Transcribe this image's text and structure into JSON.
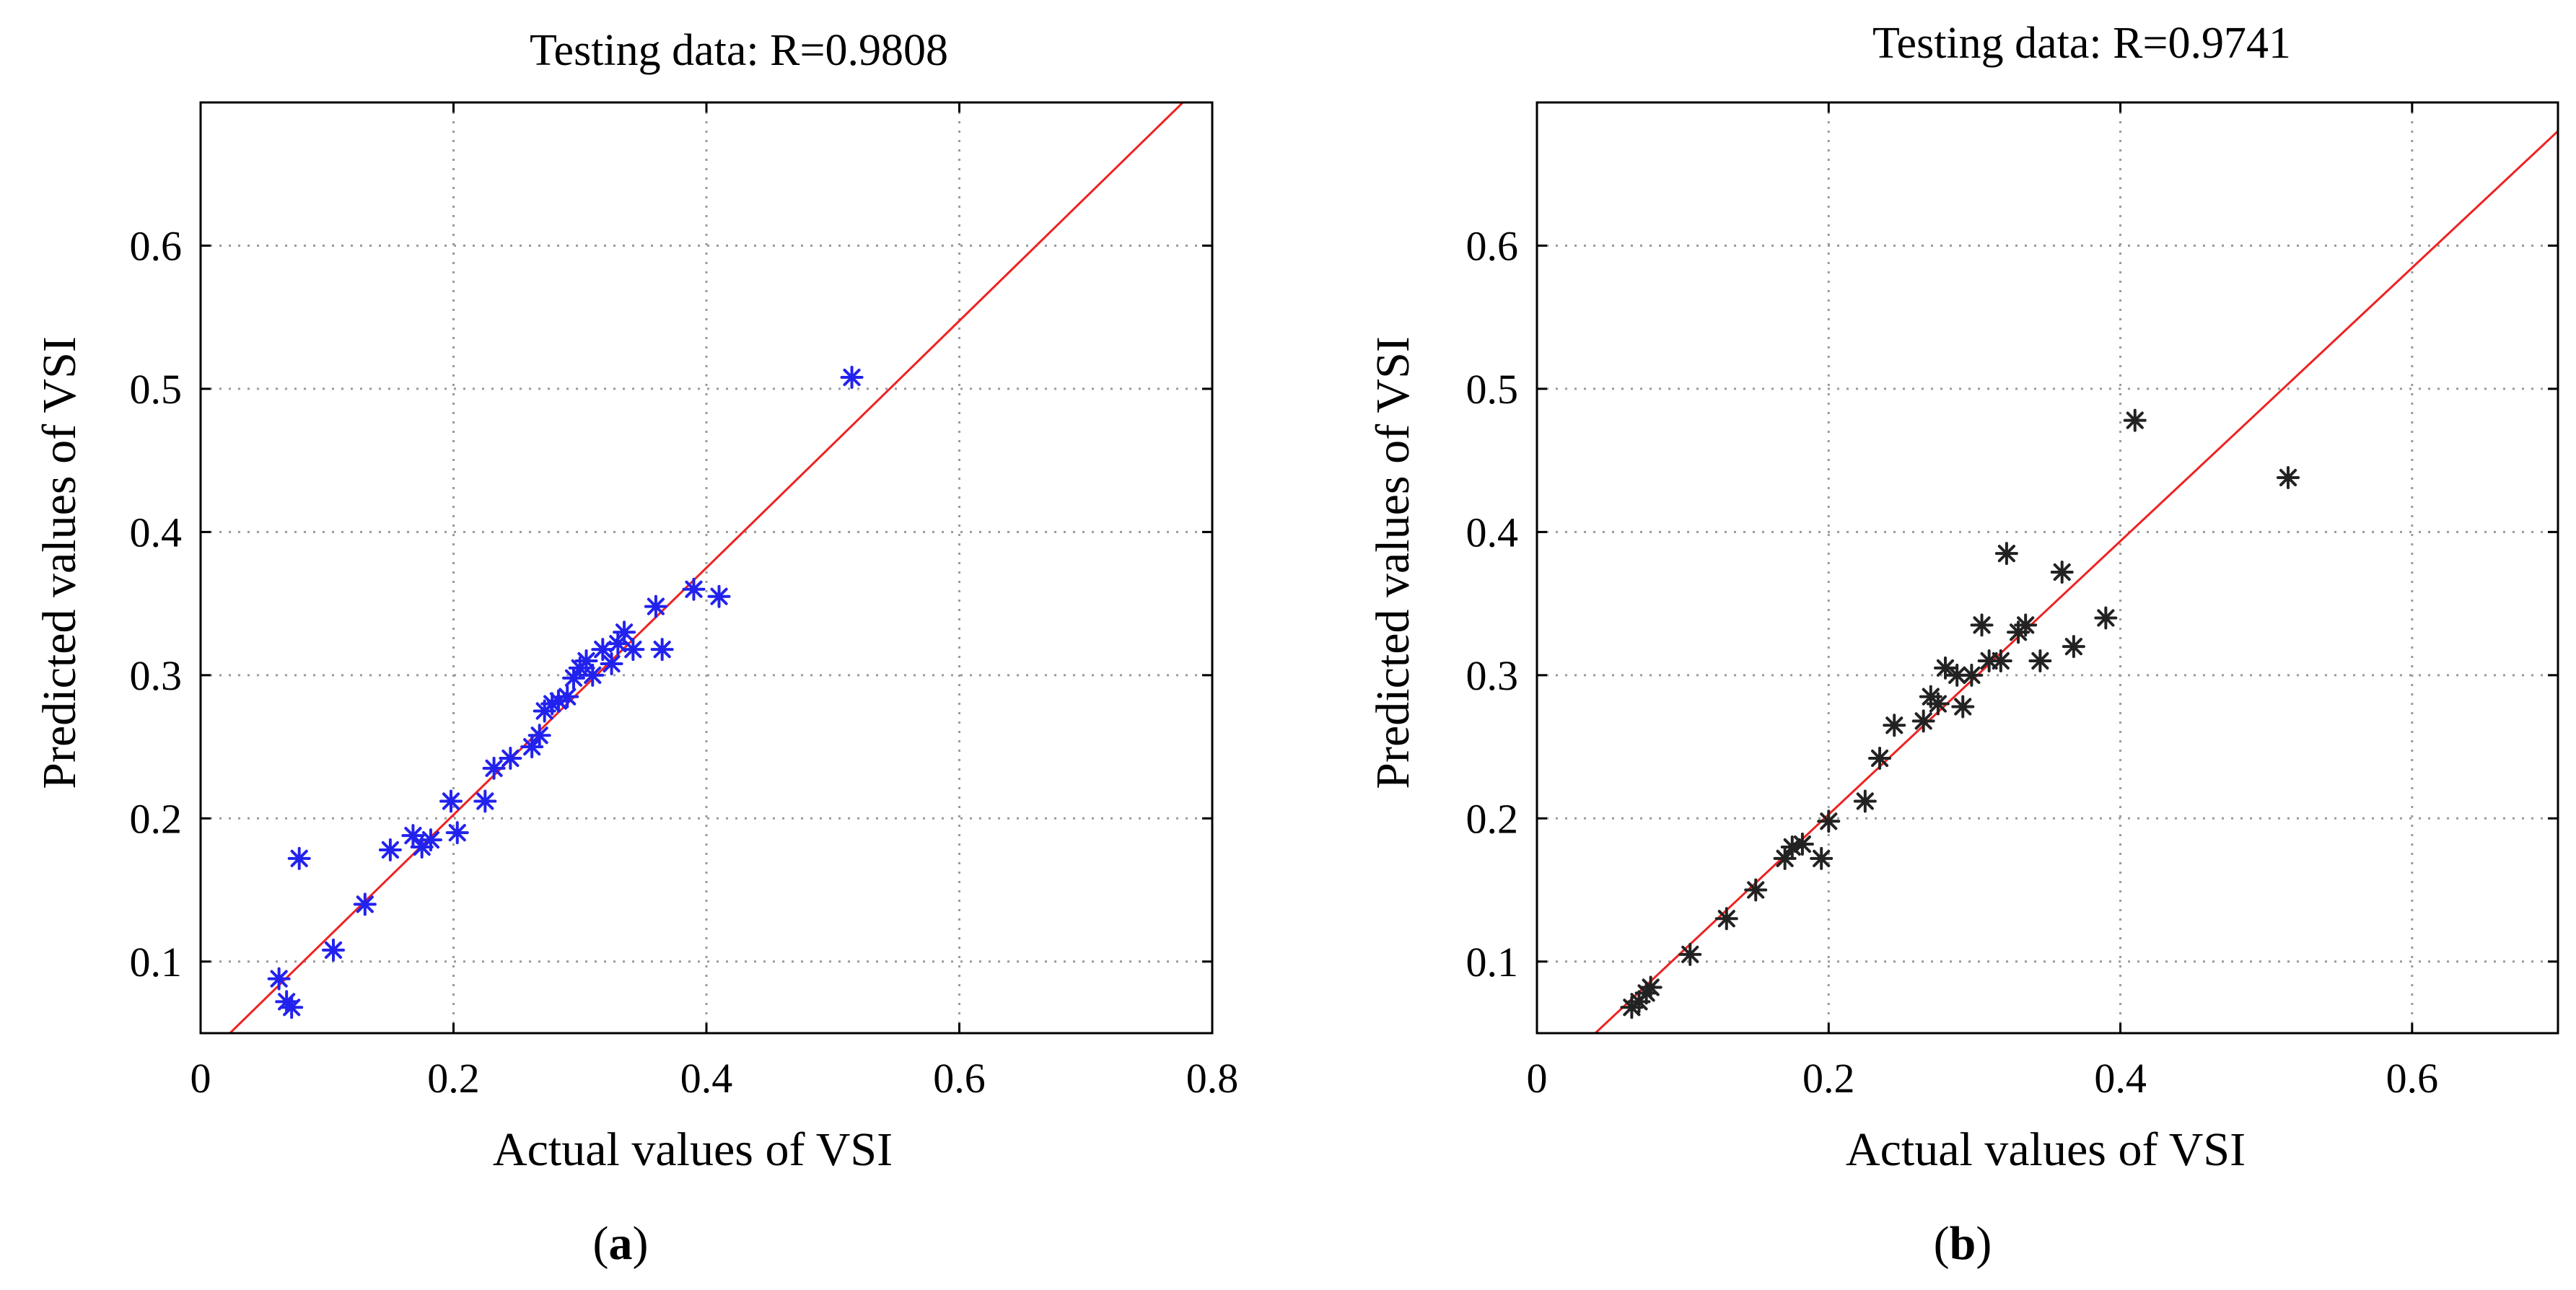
{
  "chart_data": [
    {
      "type": "scatter",
      "panel": "a",
      "title": "Testing data: R=0.9808",
      "xlabel": "Actual values of VSI",
      "ylabel": "Predicted values of VSI",
      "xlim": [
        0,
        0.8
      ],
      "ylim": [
        0.05,
        0.7
      ],
      "xticks": [
        0,
        0.2,
        0.4,
        0.6,
        0.8
      ],
      "xtick_labels": [
        "0",
        "0.2",
        "0.4",
        "0.6",
        "0.8"
      ],
      "yticks": [
        0.1,
        0.2,
        0.3,
        0.4,
        0.5,
        0.6
      ],
      "ytick_labels": [
        "0.1",
        "0.2",
        "0.3",
        "0.4",
        "0.5",
        "0.6"
      ],
      "grid": true,
      "marker": "*",
      "marker_color": "#2222ee",
      "fit_line": {
        "color": "#ee2222",
        "x": [
          0,
          0.8
        ],
        "y": [
          0.03,
          0.72
        ]
      },
      "caption": {
        "open": "(",
        "letter": "a",
        "close": ")"
      },
      "series": [
        {
          "name": "Testing data",
          "x": [
            0.062,
            0.068,
            0.072,
            0.078,
            0.105,
            0.13,
            0.15,
            0.168,
            0.175,
            0.182,
            0.198,
            0.203,
            0.225,
            0.232,
            0.245,
            0.262,
            0.268,
            0.272,
            0.278,
            0.283,
            0.29,
            0.295,
            0.3,
            0.305,
            0.31,
            0.318,
            0.325,
            0.33,
            0.335,
            0.342,
            0.36,
            0.365,
            0.39,
            0.41,
            0.515
          ],
          "y": [
            0.088,
            0.072,
            0.068,
            0.172,
            0.108,
            0.14,
            0.178,
            0.188,
            0.18,
            0.185,
            0.212,
            0.19,
            0.212,
            0.235,
            0.242,
            0.25,
            0.258,
            0.275,
            0.28,
            0.282,
            0.285,
            0.298,
            0.305,
            0.31,
            0.3,
            0.318,
            0.308,
            0.322,
            0.33,
            0.318,
            0.348,
            0.318,
            0.36,
            0.355,
            0.508
          ]
        }
      ]
    },
    {
      "type": "scatter",
      "panel": "b",
      "title": "Testing data: R=0.9741",
      "xlabel": "Actual values of VSI",
      "ylabel": "Predicted values of VSI",
      "xlim": [
        0,
        0.7
      ],
      "ylim": [
        0.05,
        0.7
      ],
      "xticks": [
        0,
        0.2,
        0.4,
        0.6
      ],
      "xtick_labels": [
        "0",
        "0.2",
        "0.4",
        "0.6"
      ],
      "yticks": [
        0.1,
        0.2,
        0.3,
        0.4,
        0.5,
        0.6
      ],
      "ytick_labels": [
        "0.1",
        "0.2",
        "0.3",
        "0.4",
        "0.5",
        "0.6"
      ],
      "grid": true,
      "marker": "*",
      "marker_color": "#222222",
      "fit_line": {
        "color": "#ee2222",
        "x": [
          0.04,
          0.7
        ],
        "y": [
          0.05,
          0.68
        ]
      },
      "caption": {
        "open": "(",
        "letter": "b",
        "close": ")"
      },
      "series": [
        {
          "name": "Testing data",
          "x": [
            0.065,
            0.07,
            0.075,
            0.078,
            0.105,
            0.13,
            0.15,
            0.17,
            0.175,
            0.182,
            0.195,
            0.2,
            0.225,
            0.235,
            0.245,
            0.265,
            0.27,
            0.275,
            0.28,
            0.288,
            0.292,
            0.298,
            0.305,
            0.31,
            0.318,
            0.322,
            0.33,
            0.335,
            0.345,
            0.36,
            0.368,
            0.39,
            0.41,
            0.515
          ],
          "y": [
            0.068,
            0.072,
            0.078,
            0.082,
            0.105,
            0.13,
            0.15,
            0.172,
            0.18,
            0.182,
            0.172,
            0.198,
            0.212,
            0.242,
            0.265,
            0.268,
            0.285,
            0.28,
            0.305,
            0.3,
            0.278,
            0.3,
            0.335,
            0.31,
            0.31,
            0.385,
            0.33,
            0.335,
            0.31,
            0.372,
            0.32,
            0.34,
            0.478,
            0.438
          ]
        }
      ]
    }
  ]
}
